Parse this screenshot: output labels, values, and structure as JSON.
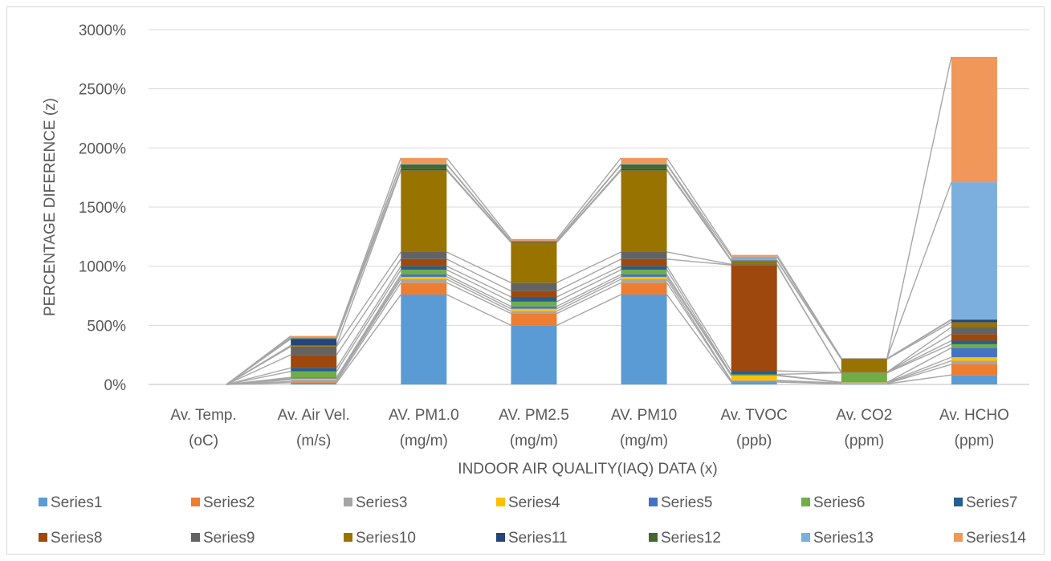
{
  "chart_data": {
    "type": "bar",
    "stacked": true,
    "xlabel": "INDOOR AIR QUALITY(IAQ) DATA (x)",
    "ylabel": "PERCENTAGE DIFERENCE (z)",
    "ylim": [
      0,
      3000
    ],
    "yticks": [
      "0%",
      "500%",
      "1000%",
      "1500%",
      "2000%",
      "2500%",
      "3000%"
    ],
    "grid": "horizontal",
    "legend_position": "bottom",
    "series_lines": true,
    "categories": [
      [
        "Av. Temp.",
        "(oC)"
      ],
      [
        "Av. Air Vel.",
        "(m/s)"
      ],
      [
        "AV. PM1.0",
        "(mg/m)"
      ],
      [
        "AV. PM2.5",
        "(mg/m)"
      ],
      [
        "AV. PM10",
        "(mg/m)"
      ],
      [
        "Av. TVOC",
        "(ppb)"
      ],
      [
        "Av. CO2",
        "(ppm)"
      ],
      [
        "Av. HCHO",
        "(ppm)"
      ]
    ],
    "series": [
      {
        "name": "Series1",
        "color": "#5b9bd5",
        "values": [
          0,
          15,
          760,
          500,
          760,
          20,
          5,
          80
        ]
      },
      {
        "name": "Series2",
        "color": "#ed7d31",
        "values": [
          0,
          10,
          100,
          100,
          100,
          10,
          3,
          90
        ]
      },
      {
        "name": "Series3",
        "color": "#a5a5a5",
        "values": [
          0,
          15,
          30,
          20,
          30,
          5,
          3,
          30
        ]
      },
      {
        "name": "Series4",
        "color": "#ffc000",
        "values": [
          0,
          10,
          20,
          20,
          20,
          40,
          5,
          30
        ]
      },
      {
        "name": "Series5",
        "color": "#4472c4",
        "values": [
          0,
          10,
          20,
          20,
          20,
          5,
          2,
          80
        ]
      },
      {
        "name": "Series6",
        "color": "#70ad47",
        "values": [
          0,
          50,
          40,
          40,
          40,
          5,
          80,
          30
        ]
      },
      {
        "name": "Series7",
        "color": "#255e91",
        "values": [
          0,
          30,
          30,
          40,
          30,
          30,
          2,
          30
        ]
      },
      {
        "name": "Series8",
        "color": "#9e480e",
        "values": [
          0,
          110,
          60,
          50,
          60,
          895,
          2,
          55
        ]
      },
      {
        "name": "Series9",
        "color": "#636363",
        "values": [
          0,
          70,
          60,
          70,
          60,
          5,
          2,
          60
        ]
      },
      {
        "name": "Series10",
        "color": "#997300",
        "values": [
          0,
          10,
          690,
          340,
          690,
          30,
          110,
          40
        ]
      },
      {
        "name": "Series11",
        "color": "#264478",
        "values": [
          0,
          55,
          10,
          5,
          10,
          3,
          2,
          20
        ]
      },
      {
        "name": "Series12",
        "color": "#43682b",
        "values": [
          0,
          5,
          40,
          5,
          40,
          2,
          3,
          5
        ]
      },
      {
        "name": "Series13",
        "color": "#7cafdd",
        "values": [
          0,
          10,
          5,
          5,
          5,
          30,
          2,
          1160
        ]
      },
      {
        "name": "Series14",
        "color": "#f1975a",
        "values": [
          0,
          10,
          50,
          15,
          50,
          15,
          2,
          1060
        ]
      }
    ]
  }
}
